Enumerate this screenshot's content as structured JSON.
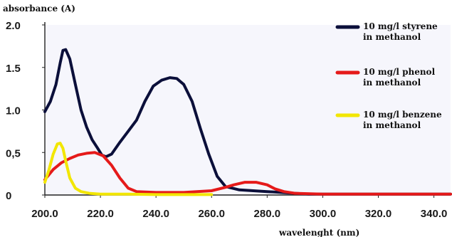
{
  "chart_data": {
    "type": "line",
    "ylabel": "absorbance (A)",
    "xlabel": "wavelenght (nm)",
    "xlim": [
      200,
      346
    ],
    "ylim": [
      0,
      2.0
    ],
    "x_ticks": [
      "200.0",
      "220.0",
      "240.0",
      "260.0",
      "280.0",
      "300.0",
      "320.0",
      "340.0"
    ],
    "y_ticks": [
      "0",
      "0,5",
      "1.0",
      "1.5",
      "2.0"
    ],
    "legend_position": "right",
    "series": [
      {
        "name_line1": "10 mg/l styrene",
        "name_line2": "in methanol",
        "color": "#0b0f3a",
        "points": [
          [
            200.0,
            0.98
          ],
          [
            202.0,
            1.1
          ],
          [
            204.0,
            1.3
          ],
          [
            205.5,
            1.55
          ],
          [
            206.5,
            1.7
          ],
          [
            207.5,
            1.71
          ],
          [
            209.0,
            1.6
          ],
          [
            211.0,
            1.3
          ],
          [
            213.0,
            1.0
          ],
          [
            215.0,
            0.8
          ],
          [
            217.0,
            0.65
          ],
          [
            219.0,
            0.55
          ],
          [
            220.5,
            0.47
          ],
          [
            222.0,
            0.45
          ],
          [
            224.0,
            0.48
          ],
          [
            227.0,
            0.62
          ],
          [
            230.0,
            0.75
          ],
          [
            233.0,
            0.88
          ],
          [
            236.0,
            1.1
          ],
          [
            239.0,
            1.28
          ],
          [
            242.0,
            1.35
          ],
          [
            245.0,
            1.38
          ],
          [
            247.5,
            1.37
          ],
          [
            250.0,
            1.3
          ],
          [
            253.0,
            1.1
          ],
          [
            256.0,
            0.78
          ],
          [
            259.0,
            0.48
          ],
          [
            262.0,
            0.22
          ],
          [
            265.0,
            0.1
          ],
          [
            270.0,
            0.06
          ],
          [
            275.0,
            0.05
          ],
          [
            280.0,
            0.04
          ],
          [
            285.0,
            0.03
          ],
          [
            290.0,
            0.02
          ],
          [
            295.0,
            0.01
          ],
          [
            300.0,
            0.01
          ],
          [
            320.0,
            0.01
          ],
          [
            346.0,
            0.01
          ]
        ]
      },
      {
        "name_line1": "10 mg/l phenol",
        "name_line2": "in methanol",
        "color": "#e51a1a",
        "points": [
          [
            200.0,
            0.18
          ],
          [
            203.0,
            0.3
          ],
          [
            206.0,
            0.38
          ],
          [
            209.0,
            0.43
          ],
          [
            212.0,
            0.47
          ],
          [
            215.0,
            0.49
          ],
          [
            218.0,
            0.5
          ],
          [
            221.0,
            0.46
          ],
          [
            224.0,
            0.35
          ],
          [
            227.0,
            0.2
          ],
          [
            230.0,
            0.08
          ],
          [
            233.0,
            0.04
          ],
          [
            240.0,
            0.03
          ],
          [
            250.0,
            0.03
          ],
          [
            260.0,
            0.05
          ],
          [
            265.0,
            0.09
          ],
          [
            268.0,
            0.12
          ],
          [
            272.0,
            0.15
          ],
          [
            276.0,
            0.15
          ],
          [
            280.0,
            0.12
          ],
          [
            283.0,
            0.07
          ],
          [
            286.0,
            0.04
          ],
          [
            290.0,
            0.02
          ],
          [
            300.0,
            0.01
          ],
          [
            346.0,
            0.01
          ]
        ]
      },
      {
        "name_line1": "10 mg/l benzene",
        "name_line2": "in methanol",
        "color": "#f2e600",
        "points": [
          [
            200.0,
            0.15
          ],
          [
            201.5,
            0.3
          ],
          [
            203.0,
            0.48
          ],
          [
            204.5,
            0.6
          ],
          [
            205.5,
            0.61
          ],
          [
            206.5,
            0.55
          ],
          [
            207.5,
            0.4
          ],
          [
            209.0,
            0.2
          ],
          [
            211.0,
            0.08
          ],
          [
            213.0,
            0.04
          ],
          [
            216.0,
            0.02
          ],
          [
            220.0,
            0.01
          ],
          [
            230.0,
            0.01
          ],
          [
            240.0,
            0.005
          ],
          [
            260.0,
            0.005
          ]
        ]
      }
    ]
  }
}
